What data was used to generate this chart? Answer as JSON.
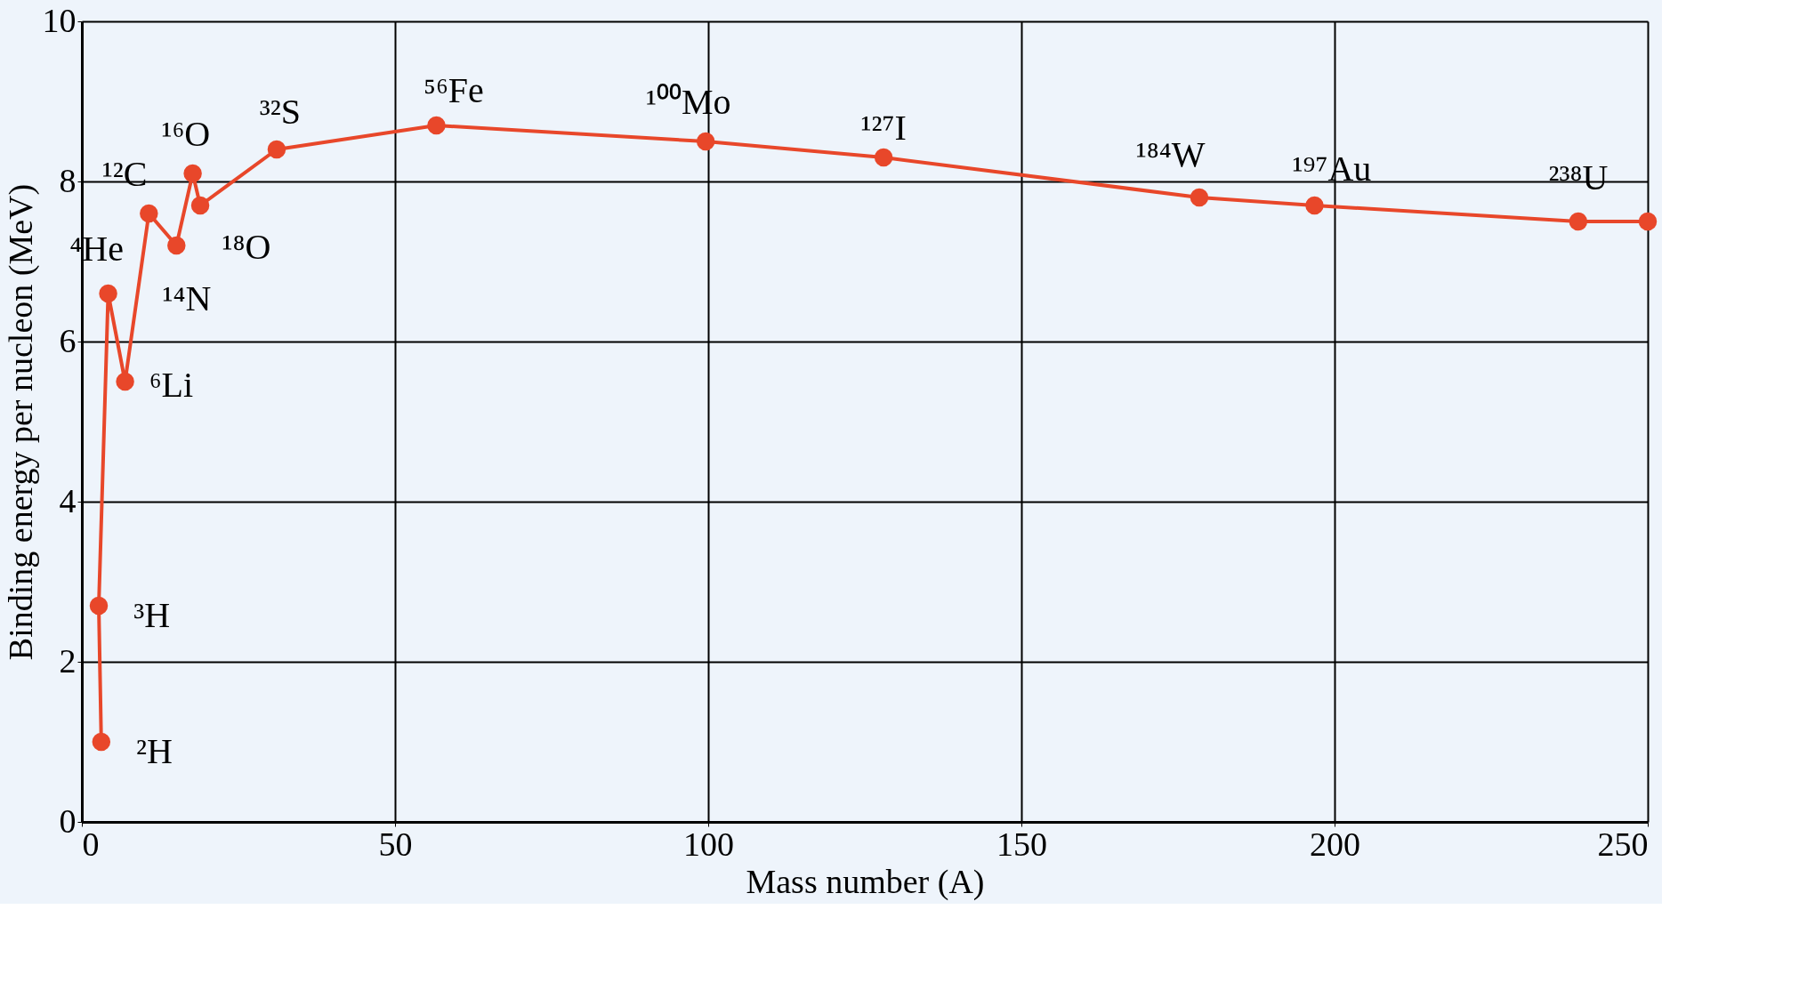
{
  "chart_data": {
    "type": "line",
    "xlabel": "Mass number (A)",
    "ylabel": "Binding energy per nucleon (MeV)",
    "x": [
      3.1,
      2.7,
      4.2,
      6.9,
      10.7,
      15.1,
      17.7,
      18.9,
      31.1,
      56.6,
      99.6,
      128,
      178.4,
      196.8,
      238.9,
      250
    ],
    "series": [
      {
        "color": "#e8472a",
        "values": [
          1.0,
          2.7,
          6.6,
          5.5,
          7.6,
          7.2,
          8.1,
          7.7,
          8.4,
          8.7,
          8.5,
          8.3,
          7.8,
          7.7,
          7.5,
          7.5
        ]
      }
    ],
    "annotations": [
      {
        "text": "²H",
        "x": 3.1,
        "y": 1.0
      },
      {
        "text": "³H",
        "x": 2.7,
        "y": 2.7
      },
      {
        "text": "⁴He",
        "x": 4.2,
        "y": 6.6
      },
      {
        "text": "⁶Li",
        "x": 6.9,
        "y": 5.5
      },
      {
        "text": "¹²C",
        "x": 10.7,
        "y": 7.6
      },
      {
        "text": "¹⁴N",
        "x": 15.1,
        "y": 7.2
      },
      {
        "text": "¹⁶O",
        "x": 17.7,
        "y": 8.1
      },
      {
        "text": "¹⁸O",
        "x": 18.9,
        "y": 7.7
      },
      {
        "text": "³²S",
        "x": 31.1,
        "y": 8.4
      },
      {
        "text": "⁵⁶Fe",
        "x": 56.6,
        "y": 8.7
      },
      {
        "text": "¹⁰⁰Mo",
        "x": 99.6,
        "y": 8.5
      },
      {
        "text": "¹²⁷I",
        "x": 128,
        "y": 8.3
      },
      {
        "text": "¹⁸⁴W",
        "x": 178.4,
        "y": 7.8
      },
      {
        "text": "¹⁹⁷Au",
        "x": 196.8,
        "y": 7.7
      },
      {
        "text": "²³⁸U",
        "x": 238.9,
        "y": 7.5
      }
    ],
    "xlim": [
      0,
      250
    ],
    "xticks": [
      0,
      50,
      100,
      150,
      200,
      250
    ],
    "ylim": [
      0,
      10
    ],
    "yticks": [
      0,
      2,
      4,
      6,
      8,
      10
    ],
    "grid": true,
    "marker": "circle",
    "line_style": "solid"
  }
}
